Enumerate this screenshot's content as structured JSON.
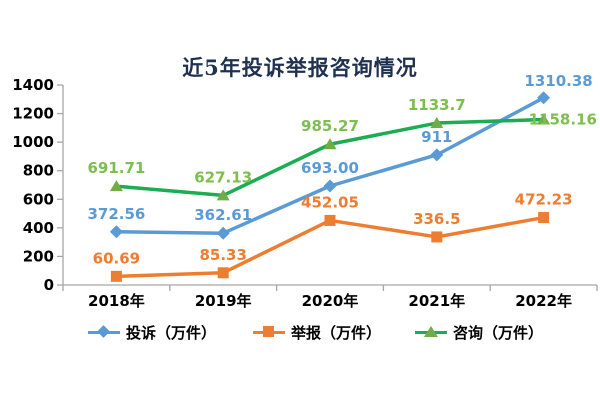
{
  "window": {
    "background": "#ffffff"
  },
  "chart_data": {
    "type": "line",
    "title": "近5年投诉举报咨询情况",
    "title_color": "#1F3050",
    "categories": [
      "2018年",
      "2019年",
      "2020年",
      "2021年",
      "2022年"
    ],
    "series": [
      {
        "name": "投诉（万件）",
        "values": [
          372.56,
          362.61,
          693.0,
          911,
          1310.38
        ],
        "labels": [
          "372.56",
          "362.61",
          "693.00",
          "911",
          "1310.38"
        ],
        "color": "#5B9BD5",
        "marker": "diamond",
        "marker_color": "#5B9BD5",
        "label_color": "#5B9BD5",
        "label_placements": [
          "top",
          "top",
          "top",
          "top",
          "top-right"
        ]
      },
      {
        "name": "举报（万件）",
        "values": [
          60.69,
          85.33,
          452.05,
          336.5,
          472.23
        ],
        "labels": [
          "60.69",
          "85.33",
          "452.05",
          "336.5",
          "472.23"
        ],
        "color": "#ED7D31",
        "marker": "square",
        "marker_color": "#ED7D31",
        "label_color": "#ED7D31",
        "label_placements": [
          "top",
          "top",
          "top",
          "top",
          "top"
        ]
      },
      {
        "name": "咨询（万件）",
        "values": [
          691.71,
          627.13,
          985.27,
          1133.7,
          1158.16
        ],
        "labels": [
          "691.71",
          "627.13",
          "985.27",
          "1133.7",
          "1158.16"
        ],
        "color": "#1CAD52",
        "marker": "triangle",
        "marker_color": "#70AD47",
        "label_color": "#7CBE4F",
        "label_placements": [
          "top",
          "top",
          "top",
          "top",
          "right"
        ]
      }
    ],
    "xlabel": "",
    "ylabel": "",
    "ylim": [
      0,
      1400
    ],
    "ytick_step": 200,
    "ytick_labels": [
      "0",
      "200",
      "400",
      "600",
      "800",
      "1000",
      "1200",
      "1400"
    ],
    "grid": false,
    "legend_position": "bottom",
    "axis_color": "#A6A6A6",
    "tick_text_color": "#000000"
  }
}
